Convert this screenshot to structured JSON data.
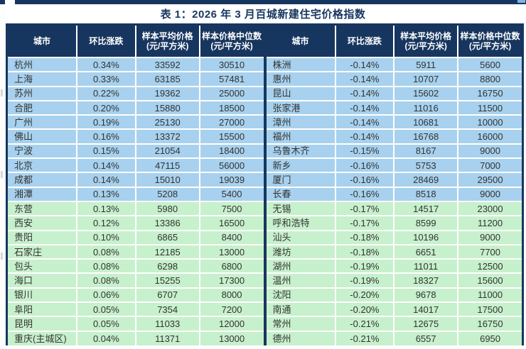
{
  "title": "表 1：2026 年 3 月百城新建住宅价格指数",
  "columns": [
    "城市",
    "环比涨跌",
    "样本平均价格\n(元/平方米)",
    "样本价格中位数\n(元/平方米)"
  ],
  "colors": {
    "header_bg": "#17365f",
    "accent_bar": "#17365f",
    "row_blue": "#a7d1ee",
    "row_green": "#c7f0cc",
    "title_text": "#17365f"
  },
  "left_rows": [
    {
      "city": "杭州",
      "change": "0.34%",
      "avg": "33592",
      "median": "30510"
    },
    {
      "city": "上海",
      "change": "0.33%",
      "avg": "63185",
      "median": "57481"
    },
    {
      "city": "苏州",
      "change": "0.22%",
      "avg": "19362",
      "median": "25000"
    },
    {
      "city": "合肥",
      "change": "0.20%",
      "avg": "15880",
      "median": "18500"
    },
    {
      "city": "广州",
      "change": "0.19%",
      "avg": "25130",
      "median": "27000"
    },
    {
      "city": "佛山",
      "change": "0.16%",
      "avg": "13372",
      "median": "15500"
    },
    {
      "city": "宁波",
      "change": "0.15%",
      "avg": "21054",
      "median": "18400"
    },
    {
      "city": "北京",
      "change": "0.14%",
      "avg": "47115",
      "median": "56000"
    },
    {
      "city": "成都",
      "change": "0.14%",
      "avg": "15010",
      "median": "19039"
    },
    {
      "city": "湘潭",
      "change": "0.13%",
      "avg": "5208",
      "median": "5400"
    },
    {
      "city": "东营",
      "change": "0.13%",
      "avg": "5980",
      "median": "7500"
    },
    {
      "city": "西安",
      "change": "0.12%",
      "avg": "13386",
      "median": "16500"
    },
    {
      "city": "贵阳",
      "change": "0.10%",
      "avg": "6865",
      "median": "8400"
    },
    {
      "city": "石家庄",
      "change": "0.08%",
      "avg": "12185",
      "median": "13000"
    },
    {
      "city": "包头",
      "change": "0.08%",
      "avg": "6298",
      "median": "6800"
    },
    {
      "city": "海口",
      "change": "0.08%",
      "avg": "15255",
      "median": "17300"
    },
    {
      "city": "银川",
      "change": "0.06%",
      "avg": "6707",
      "median": "8000"
    },
    {
      "city": "阜阳",
      "change": "0.05%",
      "avg": "7354",
      "median": "7200"
    },
    {
      "city": "昆明",
      "change": "0.05%",
      "avg": "11033",
      "median": "12000"
    },
    {
      "city": "重庆(主城区)",
      "change": "0.04%",
      "avg": "11371",
      "median": "13000"
    }
  ],
  "right_rows": [
    {
      "city": "株洲",
      "change": "-0.14%",
      "avg": "5911",
      "median": "5600"
    },
    {
      "city": "惠州",
      "change": "-0.14%",
      "avg": "10707",
      "median": "8800"
    },
    {
      "city": "昆山",
      "change": "-0.14%",
      "avg": "15602",
      "median": "16750"
    },
    {
      "city": "张家港",
      "change": "-0.14%",
      "avg": "11016",
      "median": "11500"
    },
    {
      "city": "漳州",
      "change": "-0.14%",
      "avg": "10681",
      "median": "10000"
    },
    {
      "city": "福州",
      "change": "-0.14%",
      "avg": "16768",
      "median": "16000"
    },
    {
      "city": "乌鲁木齐",
      "change": "-0.15%",
      "avg": "8167",
      "median": "9000"
    },
    {
      "city": "新乡",
      "change": "-0.16%",
      "avg": "5753",
      "median": "7000"
    },
    {
      "city": "厦门",
      "change": "-0.16%",
      "avg": "28469",
      "median": "29500"
    },
    {
      "city": "长春",
      "change": "-0.16%",
      "avg": "8518",
      "median": "9000"
    },
    {
      "city": "无锡",
      "change": "-0.17%",
      "avg": "14517",
      "median": "23000"
    },
    {
      "city": "呼和浩特",
      "change": "-0.17%",
      "avg": "8599",
      "median": "11200"
    },
    {
      "city": "汕头",
      "change": "-0.18%",
      "avg": "10196",
      "median": "9000"
    },
    {
      "city": "潍坊",
      "change": "-0.18%",
      "avg": "6651",
      "median": "7700"
    },
    {
      "city": "湖州",
      "change": "-0.19%",
      "avg": "11011",
      "median": "12500"
    },
    {
      "city": "温州",
      "change": "-0.19%",
      "avg": "18327",
      "median": "15600"
    },
    {
      "city": "沈阳",
      "change": "-0.20%",
      "avg": "9678",
      "median": "11000"
    },
    {
      "city": "南通",
      "change": "-0.20%",
      "avg": "14017",
      "median": "17500"
    },
    {
      "city": "常州",
      "change": "-0.21%",
      "avg": "12675",
      "median": "16750"
    },
    {
      "city": "德州",
      "change": "-0.21%",
      "avg": "6557",
      "median": "6950"
    }
  ]
}
